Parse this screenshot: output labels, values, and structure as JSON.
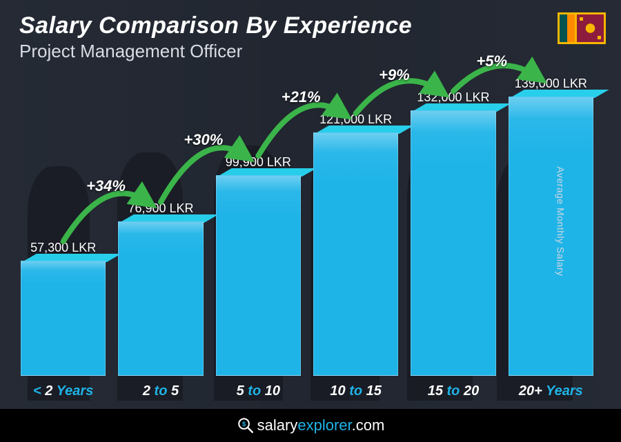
{
  "header": {
    "title": "Salary Comparison By Experience",
    "subtitle": "Project Management Officer"
  },
  "y_axis_label": "Average Monthly Salary",
  "footer": {
    "brand_prefix": "salary",
    "brand_accent": "explorer",
    "brand_suffix": ".com"
  },
  "chart": {
    "type": "bar",
    "bar_color": "#1fb4e8",
    "bar_top_color": "#4fc8f0",
    "arc_color": "#3bb54a",
    "label_accent_color": "#1fb4e8",
    "label_number_color": "#ffffff",
    "value_color": "#ffffff",
    "pct_color": "#ffffff",
    "background_overlay": "rgba(30,35,45,0.75)",
    "currency": "LKR",
    "max_value": 139000,
    "bars": [
      {
        "label_prefix": "< ",
        "label_num": "2",
        "label_suffix": " Years",
        "value": 57300,
        "value_text": "57,300 LKR"
      },
      {
        "label_prefix": "",
        "label_num": "2",
        "label_mid": " to ",
        "label_num2": "5",
        "label_suffix": "",
        "value": 76900,
        "value_text": "76,900 LKR",
        "pct": "+34%"
      },
      {
        "label_prefix": "",
        "label_num": "5",
        "label_mid": " to ",
        "label_num2": "10",
        "label_suffix": "",
        "value": 99900,
        "value_text": "99,900 LKR",
        "pct": "+30%"
      },
      {
        "label_prefix": "",
        "label_num": "10",
        "label_mid": " to ",
        "label_num2": "15",
        "label_suffix": "",
        "value": 121000,
        "value_text": "121,000 LKR",
        "pct": "+21%"
      },
      {
        "label_prefix": "",
        "label_num": "15",
        "label_mid": " to ",
        "label_num2": "20",
        "label_suffix": "",
        "value": 132000,
        "value_text": "132,000 LKR",
        "pct": "+9%"
      },
      {
        "label_prefix": "",
        "label_num": "20+",
        "label_suffix": " Years",
        "value": 139000,
        "value_text": "139,000 LKR",
        "pct": "+5%"
      }
    ],
    "title_fontsize": 34,
    "subtitle_fontsize": 26,
    "value_fontsize": 18,
    "pct_fontsize": 22,
    "label_fontsize": 20
  },
  "flag": {
    "country": "Sri Lanka",
    "border_color": "#f7b700",
    "green": "#00534e",
    "orange": "#ff8a00",
    "maroon": "#8d1b3d"
  }
}
